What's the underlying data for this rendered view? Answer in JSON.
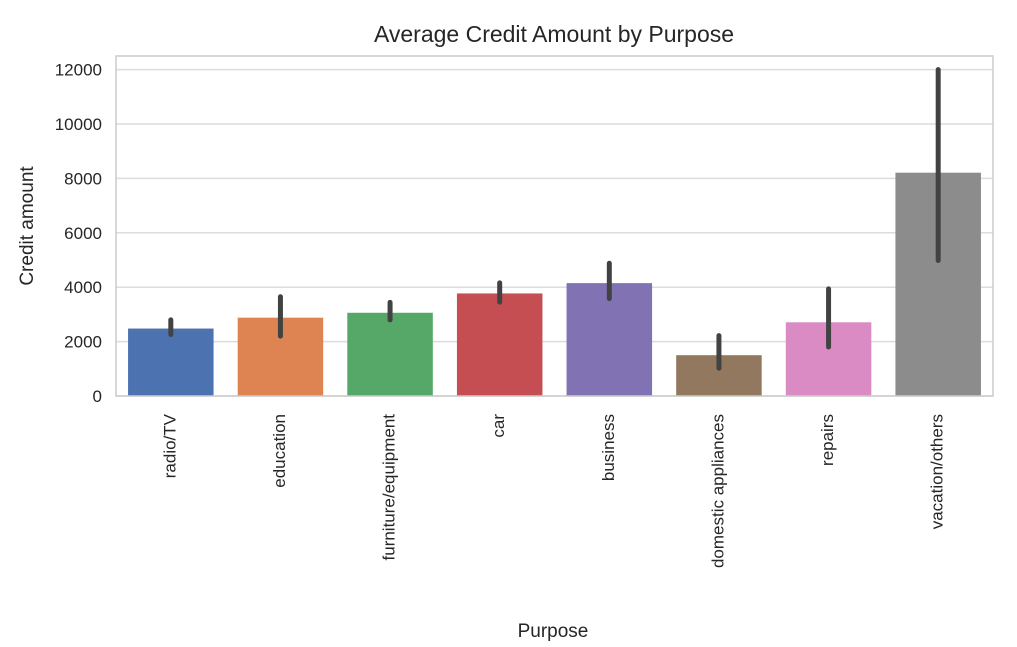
{
  "chart_data": {
    "type": "bar",
    "title": "Average Credit Amount by Purpose",
    "xlabel": "Purpose",
    "ylabel": "Credit amount",
    "categories": [
      "radio/TV",
      "education",
      "furniture/equipment",
      "car",
      "business",
      "domestic appliances",
      "repairs",
      "vacation/others"
    ],
    "values": [
      2480,
      2880,
      3060,
      3770,
      4150,
      1500,
      2710,
      8210
    ],
    "error_bars": [
      [
        2260,
        2800
      ],
      [
        2200,
        3650
      ],
      [
        2800,
        3440
      ],
      [
        3450,
        4160
      ],
      [
        3580,
        4880
      ],
      [
        1020,
        2220
      ],
      [
        1800,
        3940
      ],
      [
        4980,
        12000
      ]
    ],
    "colors": [
      "#4c72b0",
      "#dd8452",
      "#55a868",
      "#c44e52",
      "#8172b3",
      "#937860",
      "#da8bc3",
      "#8c8c8c"
    ],
    "error_color": "#424242",
    "yticks": [
      0,
      2000,
      4000,
      6000,
      8000,
      10000,
      12000
    ],
    "ylim": [
      0,
      12500
    ],
    "grid": true
  }
}
